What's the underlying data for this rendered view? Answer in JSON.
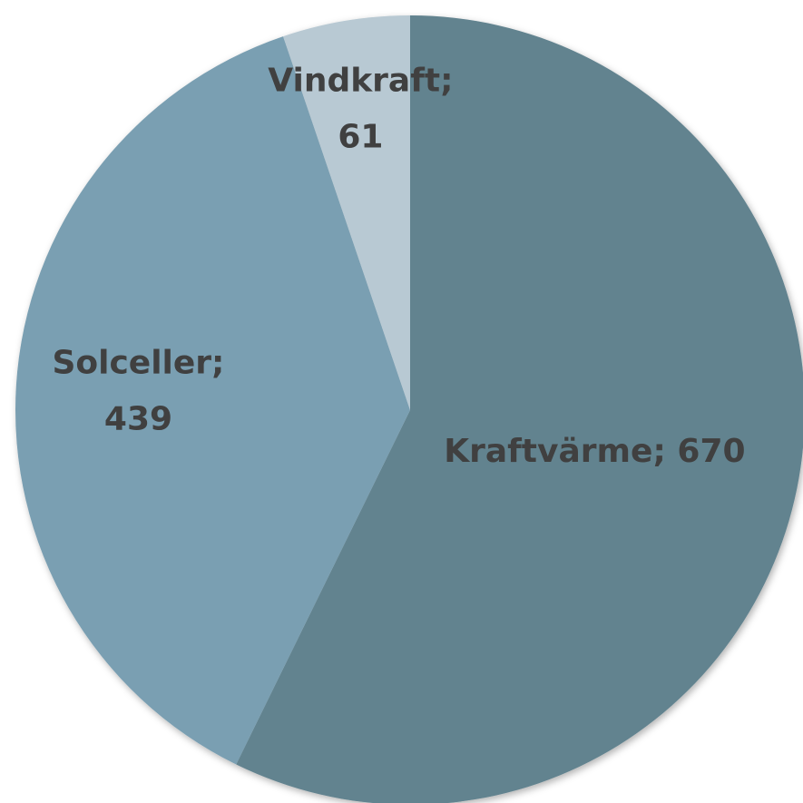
{
  "chart_data": {
    "type": "pie",
    "values": [
      670,
      439,
      61
    ],
    "value_labels": [
      [
        "Kraftvärme; 670"
      ],
      [
        "Solceller;",
        "439"
      ],
      [
        "Vindkraft;",
        "61"
      ]
    ],
    "colors": [
      "#62838f",
      "#7a9fb2",
      "#b8c9d3"
    ]
  }
}
